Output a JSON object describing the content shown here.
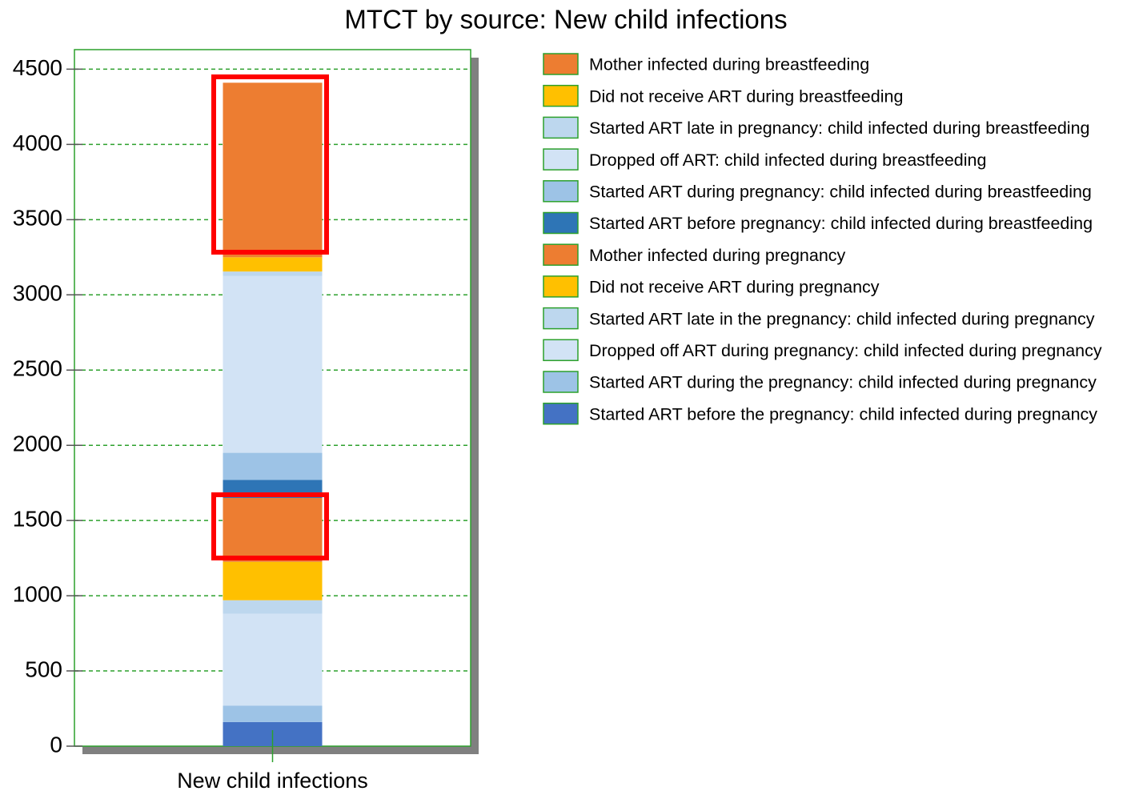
{
  "chart_data": {
    "type": "stacked_bar",
    "title": "MTCT by source: New child infections",
    "categories": [
      "New child infections"
    ],
    "series": [
      {
        "name": "Mother infected during breastfeeding",
        "color": "#ed7d31",
        "values": [
          1160
        ]
      },
      {
        "name": "Did not receive ART during breastfeeding",
        "color": "#ffc000",
        "values": [
          95
        ]
      },
      {
        "name": "Started ART late in pregnancy: child infected during breastfeeding",
        "color": "#bdd7ee",
        "values": [
          30
        ]
      },
      {
        "name": "Dropped off ART: child infected during breastfeeding",
        "color": "#d2e3f5",
        "values": [
          1175
        ]
      },
      {
        "name": "Started ART during pregnancy: child infected during breastfeeding",
        "color": "#9dc3e6",
        "values": [
          180
        ]
      },
      {
        "name": "Started ART before pregnancy: child infected during breastfeeding",
        "color": "#2e75b6",
        "values": [
          120
        ]
      },
      {
        "name": "Mother infected during pregnancy",
        "color": "#ed7d31",
        "values": [
          425
        ]
      },
      {
        "name": "Did not receive ART during pregnancy",
        "color": "#ffc000",
        "values": [
          255
        ]
      },
      {
        "name": "Started ART late in the pregnancy: child infected during pregnancy",
        "color": "#bdd7ee",
        "values": [
          90
        ]
      },
      {
        "name": "Dropped off ART during pregnancy: child infected during pregnancy",
        "color": "#d2e3f5",
        "values": [
          610
        ]
      },
      {
        "name": "Started ART during the pregnancy: child infected during pregnancy",
        "color": "#9dc3e6",
        "values": [
          110
        ]
      },
      {
        "name": "Started ART before the pregnancy: child infected during pregnancy",
        "color": "#4472c4",
        "values": [
          160
        ]
      }
    ],
    "ylim": [
      0,
      4630
    ],
    "yticks": [
      0,
      500,
      1000,
      1500,
      2000,
      2500,
      3000,
      3500,
      4000,
      4500
    ],
    "grid": true,
    "legend": "right"
  }
}
